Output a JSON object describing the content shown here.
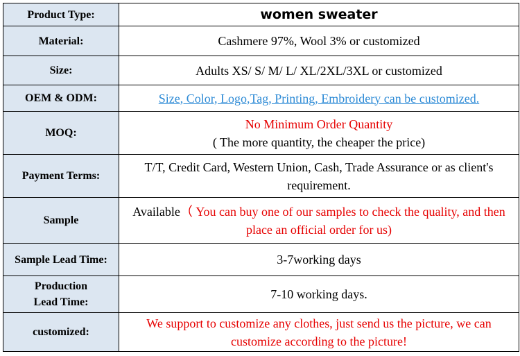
{
  "colors": {
    "label_bg": "#dce6f1",
    "link": "#2e8bd6",
    "red": "#e60000"
  },
  "rows": [
    {
      "label": "Product Type:",
      "value": "women sweater"
    },
    {
      "label": "Material:",
      "value": "Cashmere 97%, Wool 3% or customized"
    },
    {
      "label": "Size:",
      "value": "Adults XS/ S/ M/ L/ XL/2XL/3XL or customized"
    },
    {
      "label": "OEM & ODM:",
      "value": "Size, Color, Logo,Tag, Printing, Embroidery can be customized."
    },
    {
      "label": "MOQ:",
      "value_line1": "No Minimum Order Quantity",
      "value_line2": "( The more quantity, the cheaper the price)"
    },
    {
      "label": "Payment Terms:",
      "value": "T/T, Credit Card, Western Union, Cash, Trade Assurance or as client's requirement."
    },
    {
      "label": "Sample",
      "value_prefix": "Available",
      "value_red": "（ You can buy one of our samples to check the quality, and then place an official order for us)"
    },
    {
      "label": "Sample Lead Time:",
      "value": "3-7working days"
    },
    {
      "label_line1": "Production",
      "label_line2": "Lead Time:",
      "value": "7-10 working days."
    },
    {
      "label": "customized:",
      "value": "We support to customize any clothes, just send us the picture, we can customize according to the picture!"
    }
  ]
}
